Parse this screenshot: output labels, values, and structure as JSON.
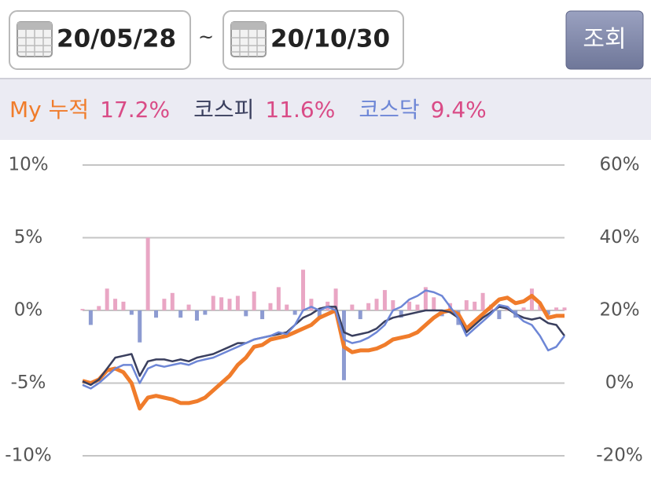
{
  "header": {
    "start_date": "20/05/28",
    "separator": "~",
    "end_date": "20/10/30",
    "button": "조회"
  },
  "chart_data": {
    "type": "combo",
    "ylim": [
      -10,
      10
    ],
    "yticks": [
      {
        "value": -10,
        "label": "-10%"
      },
      {
        "value": -5,
        "label": "-5%"
      },
      {
        "value": 0,
        "label": "0%"
      },
      {
        "value": 5,
        "label": "5%"
      },
      {
        "value": 10,
        "label": "10%"
      }
    ],
    "y2lim": [
      -20,
      60
    ],
    "y2ticks": [
      {
        "value": -20,
        "label": "-20%"
      },
      {
        "value": 0,
        "label": "0%"
      },
      {
        "value": 20,
        "label": "20%"
      },
      {
        "value": 40,
        "label": "40%"
      },
      {
        "value": 60,
        "label": "60%"
      }
    ],
    "grid": true,
    "bars": {
      "positive_color": "#e9a6c4",
      "negative_color": "#8d9bd1",
      "values": [
        0.1,
        -1,
        0.3,
        1.5,
        0.8,
        0.6,
        -0.3,
        -2.2,
        5,
        -0.5,
        0.8,
        1.2,
        -0.5,
        0.4,
        -0.7,
        -0.3,
        1,
        0.9,
        0.8,
        1,
        -0.4,
        1.3,
        -0.6,
        0.5,
        1.6,
        0.4,
        -0.3,
        2.8,
        0.8,
        -0.5,
        0.6,
        1.5,
        -4.8,
        0.4,
        -0.6,
        0.5,
        0.8,
        1.4,
        0.7,
        -0.5,
        0.6,
        0.4,
        1.6,
        0.9,
        -0.4,
        0.5,
        -1,
        0.7,
        0.6,
        1.2,
        0.4,
        -0.6,
        0.3,
        -0.5,
        0.2,
        1.5,
        0.4,
        -0.3,
        0.2,
        0.2
      ]
    },
    "series": [
      {
        "name": "My 누적",
        "total": "17.2%",
        "color": "#f07c2b",
        "axis": "y2",
        "values": [
          0.6,
          0,
          1,
          3.5,
          4,
          3,
          0,
          -7,
          -4,
          -3.5,
          -4,
          -4.5,
          -5.5,
          -5.5,
          -5,
          -4,
          -2,
          0,
          2,
          5,
          7,
          10,
          10.5,
          12,
          12.5,
          13,
          14,
          15,
          16,
          18,
          19,
          20,
          10,
          8.5,
          9,
          9,
          9.5,
          10.5,
          12,
          12.5,
          13,
          14,
          16,
          18,
          19.5,
          20,
          19,
          15,
          17,
          19,
          21,
          23,
          23.5,
          22,
          22.5,
          24,
          22,
          18,
          18.5,
          18.5
        ]
      },
      {
        "name": "코스피",
        "total": "11.6%",
        "color": "#3a3f5e",
        "axis": "y2",
        "values": [
          0.5,
          -0.5,
          1,
          4,
          7,
          7.5,
          8,
          2,
          6,
          6.5,
          6.5,
          6,
          6.5,
          6,
          7,
          7.5,
          8,
          9,
          10,
          11,
          11,
          12,
          12.5,
          13,
          13.5,
          14,
          16,
          18,
          19,
          20.5,
          21,
          21,
          14,
          13,
          13.5,
          14,
          15,
          17,
          18,
          18.5,
          19,
          19.5,
          20,
          20,
          20,
          19.5,
          18,
          14,
          16,
          18,
          19.5,
          21,
          20.5,
          19,
          18,
          17.5,
          18,
          16.5,
          16,
          13
        ]
      },
      {
        "name": "코스닥",
        "total": "9.4%",
        "color": "#6d86d6",
        "axis": "y2",
        "values": [
          -0.5,
          -1.5,
          0,
          2,
          4,
          5,
          5,
          0,
          4,
          5,
          4.5,
          5,
          5.5,
          5,
          6,
          6.5,
          7,
          8,
          9,
          10,
          11,
          12,
          12.5,
          13,
          14,
          13.5,
          16,
          20,
          21,
          20,
          21,
          20,
          12,
          11,
          11.5,
          12.5,
          14,
          16,
          20,
          21,
          23,
          24,
          25.5,
          25,
          24,
          21,
          18,
          13,
          15,
          17,
          19,
          21.5,
          21,
          19,
          17,
          16,
          13,
          9,
          10,
          13
        ]
      }
    ]
  }
}
